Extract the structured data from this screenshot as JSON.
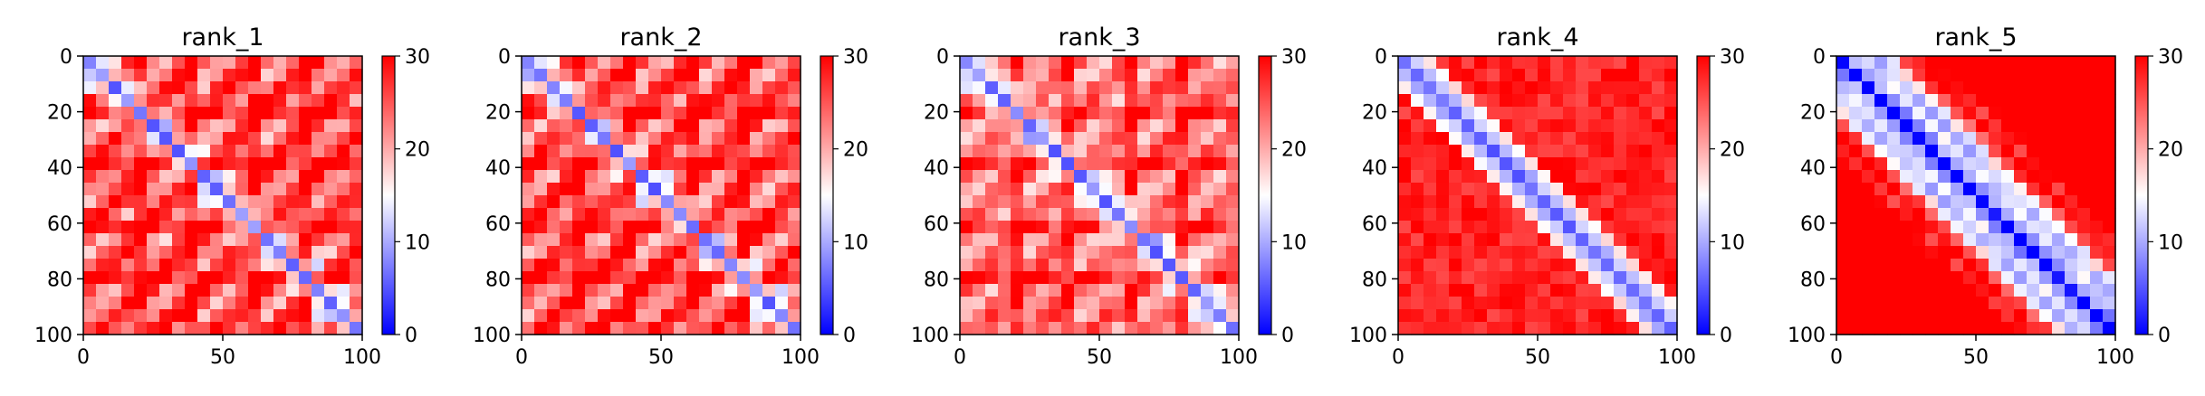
{
  "chart_data": [
    {
      "type": "heatmap",
      "title": "rank_1",
      "x_range": [
        0,
        100
      ],
      "y_range": [
        0,
        100
      ],
      "y_inverted": true,
      "x_ticks": [
        0,
        50,
        100
      ],
      "y_ticks": [
        0,
        20,
        40,
        60,
        80,
        100
      ],
      "colormap": "bwr",
      "vmin": 0,
      "vmax": 30,
      "colorbar_ticks": [
        0,
        10,
        20,
        30
      ],
      "pattern": "low values along the diagonal; strong periodic low-value blocks off the diagonal"
    },
    {
      "type": "heatmap",
      "title": "rank_2",
      "x_range": [
        0,
        100
      ],
      "y_range": [
        0,
        100
      ],
      "y_inverted": true,
      "x_ticks": [
        0,
        50,
        100
      ],
      "y_ticks": [
        0,
        20,
        40,
        60,
        80,
        100
      ],
      "colormap": "bwr",
      "vmin": 0,
      "vmax": 30,
      "colorbar_ticks": [
        0,
        10,
        20,
        30
      ],
      "pattern": "low values along the diagonal; strong periodic low-value blocks off the diagonal"
    },
    {
      "type": "heatmap",
      "title": "rank_3",
      "x_range": [
        0,
        100
      ],
      "y_range": [
        0,
        100
      ],
      "y_inverted": true,
      "x_ticks": [
        0,
        50,
        100
      ],
      "y_ticks": [
        0,
        20,
        40,
        60,
        80,
        100
      ],
      "colormap": "bwr",
      "vmin": 0,
      "vmax": 30,
      "colorbar_ticks": [
        0,
        10,
        20,
        30
      ],
      "pattern": "low values along the diagonal; weaker periodic off-diagonal blocks"
    },
    {
      "type": "heatmap",
      "title": "rank_4",
      "x_range": [
        0,
        100
      ],
      "y_range": [
        0,
        100
      ],
      "y_inverted": true,
      "x_ticks": [
        0,
        50,
        100
      ],
      "y_ticks": [
        0,
        20,
        40,
        60,
        80,
        100
      ],
      "colormap": "bwr",
      "vmin": 0,
      "vmax": 30,
      "colorbar_ticks": [
        0,
        10,
        20,
        30
      ],
      "pattern": "low values only along the diagonal; high values elsewhere"
    },
    {
      "type": "heatmap",
      "title": "rank_5",
      "x_range": [
        0,
        100
      ],
      "y_range": [
        0,
        100
      ],
      "y_inverted": true,
      "x_ticks": [
        0,
        50,
        100
      ],
      "y_ticks": [
        0,
        20,
        40,
        60,
        80,
        100
      ],
      "colormap": "bwr",
      "vmin": 0,
      "vmax": 30,
      "colorbar_ticks": [
        0,
        10,
        20,
        30
      ],
      "pattern": "low values along the diagonal; periodic bands parallel to the diagonal"
    }
  ]
}
